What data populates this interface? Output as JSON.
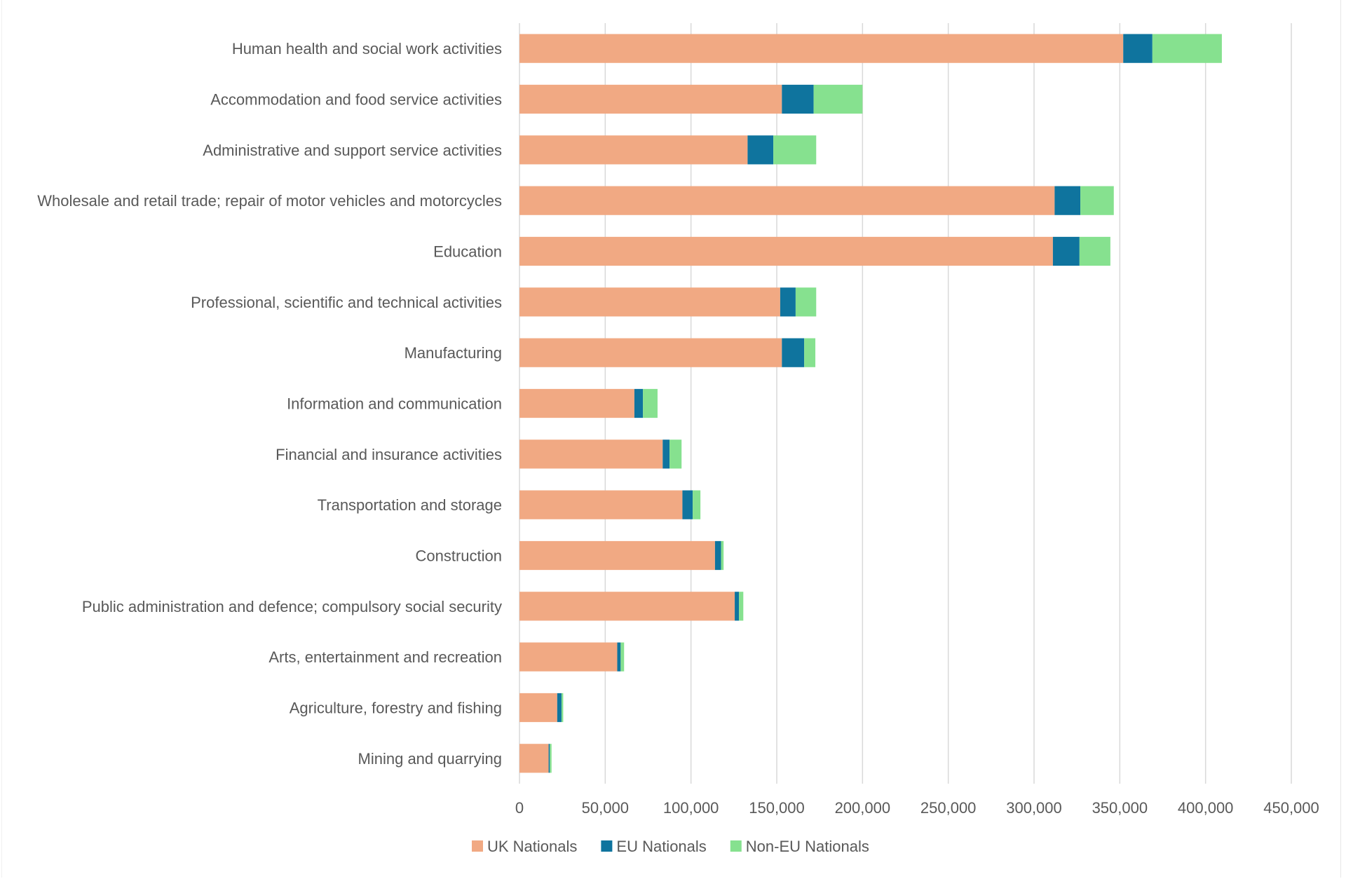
{
  "chart_data": {
    "type": "bar",
    "orientation": "horizontal",
    "stacked": true,
    "title": "",
    "xlabel": "",
    "ylabel": "",
    "xlim": [
      0,
      450000
    ],
    "x_ticks": [
      0,
      50000,
      100000,
      150000,
      200000,
      250000,
      300000,
      350000,
      400000,
      450000
    ],
    "x_tick_labels": [
      "0",
      "50,000",
      "100,000",
      "150,000",
      "200,000",
      "250,000",
      "300,000",
      "350,000",
      "400,000",
      "450,000"
    ],
    "grid": "vertical",
    "legend_position": "bottom",
    "categories": [
      "Human health and social work activities",
      "Accommodation and food service activities",
      "Administrative and support service activities",
      "Wholesale and retail trade; repair of motor vehicles and motorcycles",
      "Education",
      "Professional, scientific and technical activities",
      "Manufacturing",
      "Information and communication",
      "Financial and insurance activities",
      "Transportation and storage",
      "Construction",
      "Public administration and defence; compulsory social security",
      "Arts, entertainment and recreation",
      "Agriculture, forestry and fishing",
      "Mining and quarrying"
    ],
    "series": [
      {
        "name": "UK Nationals",
        "color": "#F1A983",
        "values": [
          352000,
          153000,
          133000,
          312000,
          311000,
          152000,
          153000,
          67000,
          83500,
          95000,
          114000,
          125500,
          57000,
          22000,
          17000
        ]
      },
      {
        "name": "EU Nationals",
        "color": "#0F749E",
        "values": [
          17000,
          18500,
          15000,
          15000,
          15500,
          9000,
          13000,
          5000,
          4000,
          6000,
          3500,
          2500,
          2000,
          2500,
          700
        ]
      },
      {
        "name": "Non-EU Nationals",
        "color": "#86E18F",
        "values": [
          40500,
          28500,
          25000,
          19500,
          18000,
          12000,
          6500,
          8500,
          7000,
          4500,
          1500,
          2500,
          2000,
          1000,
          1000
        ]
      }
    ]
  }
}
